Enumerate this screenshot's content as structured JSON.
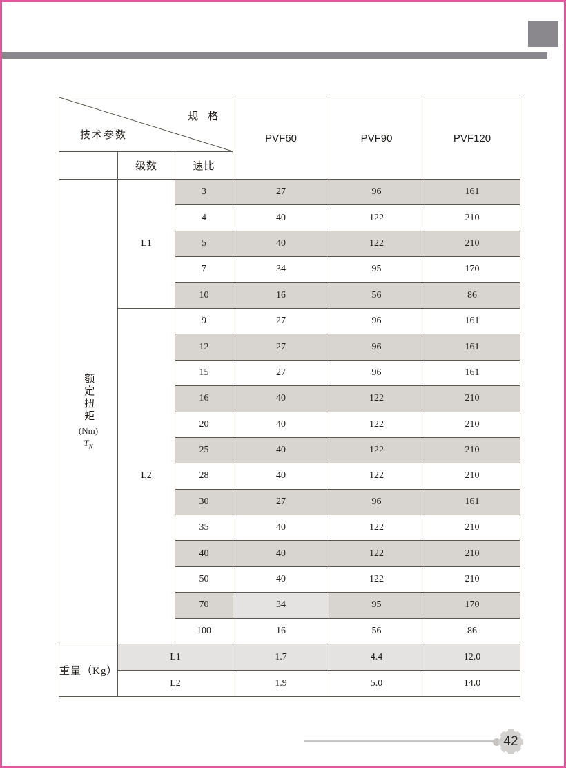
{
  "colors": {
    "accent_pink": "#e0589d",
    "decor_gray": "#8a888d",
    "row_shade_warm": "#d8d4cf",
    "row_shade_light": "#e4e3e1",
    "table_border": "#5b564f",
    "footer_line_gray": "#c9c7c5",
    "gear_gray": "#d3d1cf"
  },
  "table": {
    "corner": {
      "top_right": "规 格",
      "bottom_left": "技术参数"
    },
    "columns": [
      "PVF60",
      "PVF90",
      "PVF120"
    ],
    "subheaders": {
      "stage": "级数",
      "ratio": "速比"
    },
    "row_label": {
      "title": "额定扭矩",
      "unit": "(Nm)",
      "symbol_base": "T",
      "symbol_sub": "N"
    },
    "group_spans": {
      "L1": 5,
      "L2": 13
    },
    "torque_rows": [
      {
        "group": "L1",
        "ratio": "3",
        "values": [
          "27",
          "96",
          "161"
        ]
      },
      {
        "ratio": "4",
        "values": [
          "40",
          "122",
          "210"
        ]
      },
      {
        "ratio": "5",
        "values": [
          "40",
          "122",
          "210"
        ]
      },
      {
        "ratio": "7",
        "values": [
          "34",
          "95",
          "170"
        ]
      },
      {
        "ratio": "10",
        "values": [
          "16",
          "56",
          "86"
        ]
      },
      {
        "group": "L2",
        "ratio": "9",
        "values": [
          "27",
          "96",
          "161"
        ]
      },
      {
        "ratio": "12",
        "values": [
          "27",
          "96",
          "161"
        ]
      },
      {
        "ratio": "15",
        "values": [
          "27",
          "96",
          "161"
        ]
      },
      {
        "ratio": "16",
        "values": [
          "40",
          "122",
          "210"
        ]
      },
      {
        "ratio": "20",
        "values": [
          "40",
          "122",
          "210"
        ]
      },
      {
        "ratio": "25",
        "values": [
          "40",
          "122",
          "210"
        ]
      },
      {
        "ratio": "28",
        "values": [
          "40",
          "122",
          "210"
        ]
      },
      {
        "ratio": "30",
        "values": [
          "27",
          "96",
          "161"
        ]
      },
      {
        "ratio": "35",
        "values": [
          "40",
          "122",
          "210"
        ]
      },
      {
        "ratio": "40",
        "values": [
          "40",
          "122",
          "210"
        ]
      },
      {
        "ratio": "50",
        "values": [
          "40",
          "122",
          "210"
        ]
      },
      {
        "ratio": "70",
        "values": [
          "34",
          "95",
          "170"
        ],
        "value_variants": [
          "light",
          "",
          ""
        ]
      },
      {
        "ratio": "100",
        "values": [
          "16",
          "56",
          "86"
        ]
      }
    ],
    "weight": {
      "label": "重量（Kg）",
      "rows": [
        {
          "label": "L1",
          "values": [
            "1.7",
            "4.4",
            "12.0"
          ]
        },
        {
          "label": "L2",
          "values": [
            "1.9",
            "5.0",
            "14.0"
          ]
        }
      ]
    }
  },
  "footer": {
    "page_number": "42"
  }
}
